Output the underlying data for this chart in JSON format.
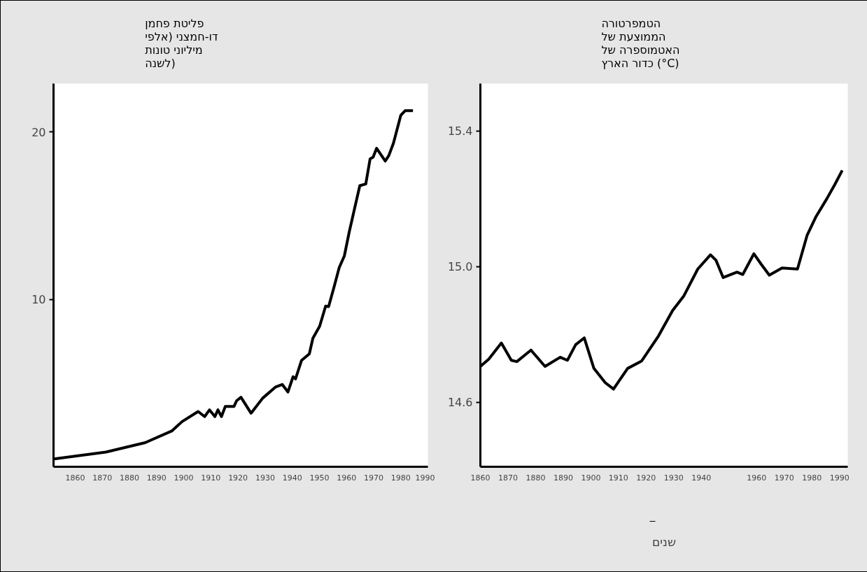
{
  "chart_data": [
    {
      "type": "line",
      "ylabel": "פליטת פחמן דו-חמצני (אלפי מיליוני טונות לשנה)",
      "xlim": [
        1852,
        1990
      ],
      "ylim": [
        0,
        22.9
      ],
      "xticks": [
        1860,
        1870,
        1880,
        1890,
        1900,
        1910,
        1920,
        1930,
        1940,
        1950,
        1960,
        1970,
        1980,
        1990
      ],
      "yticks": [
        10,
        20
      ],
      "series": [
        {
          "color": "#000000",
          "x": [
            1852.3,
            1871.3,
            1885.8,
            1895.7,
            1899.4,
            1905.3,
            1907.7,
            1909.5,
            1911.5,
            1912.6,
            1913.9,
            1915.3,
            1918.5,
            1919.5,
            1921.1,
            1924.8,
            1929.1,
            1933.9,
            1936.3,
            1938.4,
            1940.3,
            1941.2,
            1943.4,
            1946.3,
            1947.6,
            1950.1,
            1952.3,
            1953.4,
            1955.4,
            1957.3,
            1959.2,
            1961,
            1964.9,
            1967.1,
            1968.7,
            1969.8,
            1971.1,
            1974.3,
            1975.6,
            1977.3,
            1980,
            1981.6,
            1984.5
          ],
          "values": [
            0.47,
            0.88,
            1.44,
            2.15,
            2.7,
            3.3,
            3.0,
            3.4,
            3.0,
            3.4,
            3.0,
            3.6,
            3.6,
            3.95,
            4.15,
            3.2,
            4.1,
            4.77,
            4.92,
            4.47,
            5.38,
            5.25,
            6.35,
            6.75,
            7.68,
            8.4,
            9.6,
            9.57,
            10.74,
            11.9,
            12.6,
            14.03,
            16.8,
            16.9,
            18.4,
            18.5,
            19.03,
            18.27,
            18.6,
            19.34,
            21.0,
            21.28,
            21.28
          ]
        }
      ]
    },
    {
      "type": "line",
      "ylabel": "הטמפרטורה הממוצעת של האטמוספרה של כדור הארץ (°C)",
      "xlabel": "שנים",
      "xlim": [
        1860,
        1993
      ],
      "ylim": [
        14.41,
        15.54
      ],
      "xticks": [
        1860,
        1870,
        1880,
        1890,
        1900,
        1910,
        1920,
        1930,
        1940,
        1960,
        1970,
        1980,
        1990
      ],
      "yticks": [
        {
          "value": 14.6,
          "label": "14.6"
        },
        {
          "value": 15.0,
          "label": "15.0"
        },
        {
          "value": 15.4,
          "label": "15.4"
        }
      ],
      "series": [
        {
          "color": "#000000",
          "x": [
            1860,
            1863,
            1867.6,
            1871.2,
            1873.2,
            1878.3,
            1883.4,
            1888.9,
            1891.5,
            1894.5,
            1897.6,
            1901.1,
            1905.2,
            1908.2,
            1913.3,
            1918.4,
            1924.5,
            1929.6,
            1933.6,
            1938.7,
            1943.3,
            1945.3,
            1947.9,
            1952.9,
            1955,
            1959,
            1961.6,
            1964.6,
            1969.2,
            1974.8,
            1978.3,
            1981.4,
            1985.4,
            1988.3,
            1991
          ],
          "values": [
            14.706,
            14.727,
            14.775,
            14.724,
            14.72,
            14.754,
            14.706,
            14.733,
            14.724,
            14.77,
            14.79,
            14.7,
            14.658,
            14.639,
            14.7,
            14.722,
            14.796,
            14.871,
            14.913,
            14.993,
            15.035,
            15.019,
            14.968,
            14.984,
            14.977,
            15.038,
            15.008,
            14.975,
            14.996,
            14.993,
            15.093,
            15.146,
            15.2,
            15.242,
            15.284
          ]
        }
      ]
    }
  ]
}
